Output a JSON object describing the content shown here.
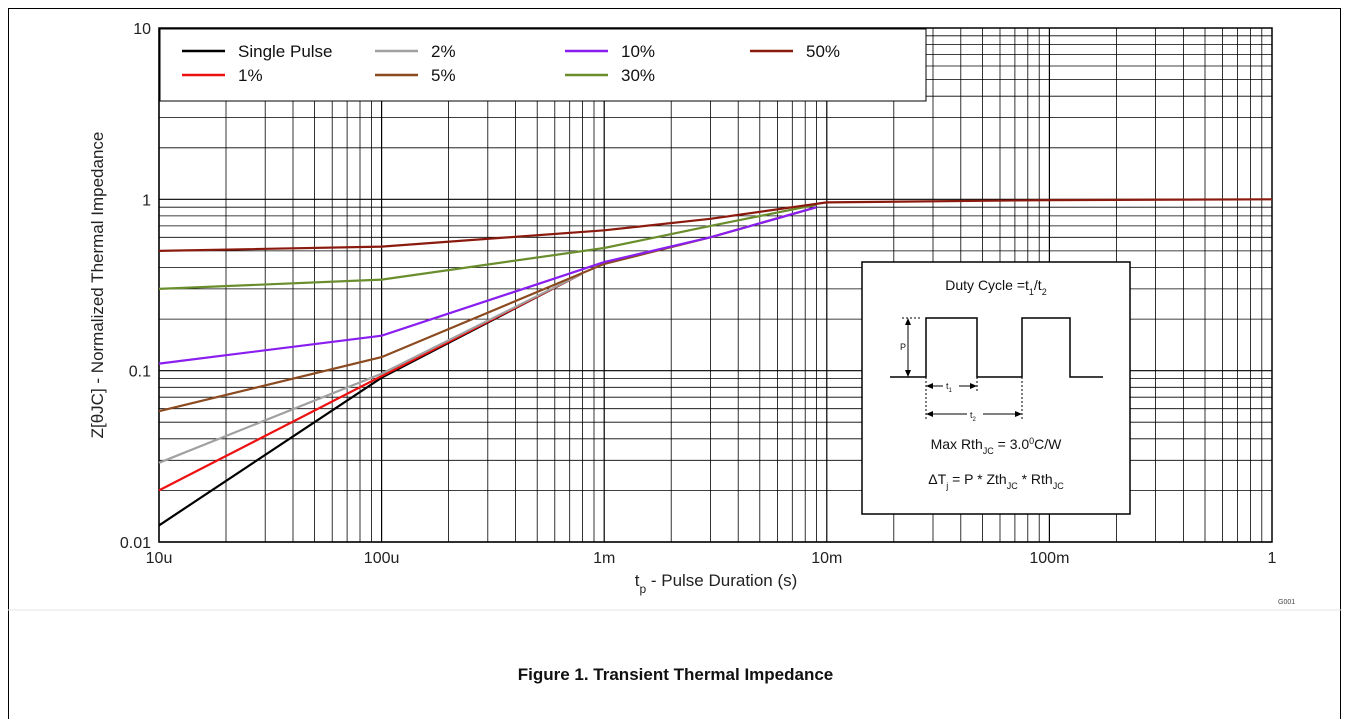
{
  "chart_data": {
    "type": "line",
    "x_scale": "log",
    "y_scale": "log",
    "xlim": [
      1e-05,
      1
    ],
    "ylim": [
      0.01,
      10
    ],
    "xlabel_main": "t",
    "xlabel_sub": "p",
    "xlabel_rest": " - Pulse Duration (s)",
    "ylabel": "Z[θJC] - Normalized Thermal Impedance",
    "grid": true,
    "legend_position": "top-left",
    "x_ticks": [
      {
        "value": 1e-05,
        "label": "10u"
      },
      {
        "value": 0.0001,
        "label": "100u"
      },
      {
        "value": 0.001,
        "label": "1m"
      },
      {
        "value": 0.01,
        "label": "10m"
      },
      {
        "value": 0.1,
        "label": "100m"
      },
      {
        "value": 1,
        "label": "1"
      }
    ],
    "y_ticks": [
      {
        "value": 0.01,
        "label": "0.01"
      },
      {
        "value": 0.1,
        "label": "0.1"
      },
      {
        "value": 1,
        "label": "1"
      },
      {
        "value": 10,
        "label": "10"
      }
    ],
    "series": [
      {
        "name": "Single Pulse",
        "color": "#000000",
        "points": [
          [
            1e-05,
            0.0125
          ],
          [
            0.0001,
            0.091
          ],
          [
            0.0008,
            0.37
          ]
        ]
      },
      {
        "name": "1%",
        "color": "#ee1111",
        "points": [
          [
            1e-05,
            0.02
          ],
          [
            0.0001,
            0.093
          ],
          [
            0.0008,
            0.37
          ]
        ]
      },
      {
        "name": "2%",
        "color": "#a0a0a0",
        "points": [
          [
            1e-05,
            0.029
          ],
          [
            0.0001,
            0.096
          ],
          [
            0.0008,
            0.37
          ]
        ]
      },
      {
        "name": "5%",
        "color": "#8b4a1f",
        "points": [
          [
            1e-05,
            0.058
          ],
          [
            0.0001,
            0.12
          ],
          [
            0.001,
            0.42
          ],
          [
            0.003,
            0.6
          ],
          [
            0.009,
            0.9
          ]
        ]
      },
      {
        "name": "10%",
        "color": "#8a1ef0",
        "points": [
          [
            1e-05,
            0.11
          ],
          [
            0.0001,
            0.16
          ],
          [
            0.001,
            0.43
          ],
          [
            0.003,
            0.6
          ],
          [
            0.009,
            0.9
          ]
        ]
      },
      {
        "name": "30%",
        "color": "#6a8e2e",
        "points": [
          [
            1e-05,
            0.3
          ],
          [
            0.0001,
            0.34
          ],
          [
            0.001,
            0.52
          ],
          [
            0.003,
            0.7
          ],
          [
            0.009,
            0.93
          ]
        ]
      },
      {
        "name": "50%",
        "color": "#8b1a0e",
        "points": [
          [
            1e-05,
            0.5
          ],
          [
            0.0001,
            0.53
          ],
          [
            0.001,
            0.66
          ],
          [
            0.003,
            0.77
          ],
          [
            0.01,
            0.96
          ],
          [
            0.1,
            0.99
          ],
          [
            1,
            1.0
          ]
        ]
      }
    ]
  },
  "inset": {
    "title_prefix": "Duty Cycle =t",
    "title_sub1": "1",
    "title_mid": "/t",
    "title_sub2": "2",
    "p_label": "P",
    "t1_main": "t",
    "t1_sub": "1",
    "t2_main": "t",
    "t2_sub": "2",
    "rth_prefix": "Max Rth",
    "rth_sub": "JC",
    "rth_mid": " = 3.0",
    "rth_sup": "0",
    "rth_suffix": "C/W",
    "dt_prefix": "ΔT",
    "dt_sub": "j",
    "dt_mid1": " = P * Zth",
    "dt_sub2": "JC",
    "dt_mid2": " * Rth",
    "dt_sub3": "JC"
  },
  "caption": "Figure 1.  Transient Thermal Impedance",
  "figure_code": "G001"
}
